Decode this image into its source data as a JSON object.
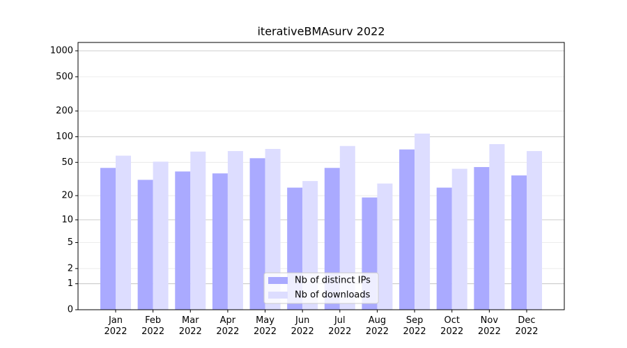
{
  "chart_data": {
    "type": "bar",
    "title": "iterativeBMAsurv 2022",
    "categories": [
      "Jan\n2022",
      "Feb\n2022",
      "Mar\n2022",
      "Apr\n2022",
      "May\n2022",
      "Jun\n2022",
      "Jul\n2022",
      "Aug\n2022",
      "Sep\n2022",
      "Oct\n2022",
      "Nov\n2022",
      "Dec\n2022"
    ],
    "series": [
      {
        "name": "Nb of distinct IPs",
        "color": "#aaaaff",
        "values": [
          43,
          31,
          39,
          37,
          56,
          25,
          43,
          19,
          71,
          25,
          44,
          35
        ]
      },
      {
        "name": "Nb of downloads",
        "color": "#ddddff",
        "values": [
          60,
          51,
          67,
          68,
          72,
          30,
          78,
          28,
          109,
          42,
          82,
          68
        ]
      }
    ],
    "yscale": "symlog",
    "ylim": [
      0,
      1250
    ],
    "yticks": [
      0,
      1,
      2,
      5,
      10,
      20,
      50,
      100,
      200,
      500,
      1000
    ],
    "grid": true,
    "legend": "lower center"
  }
}
